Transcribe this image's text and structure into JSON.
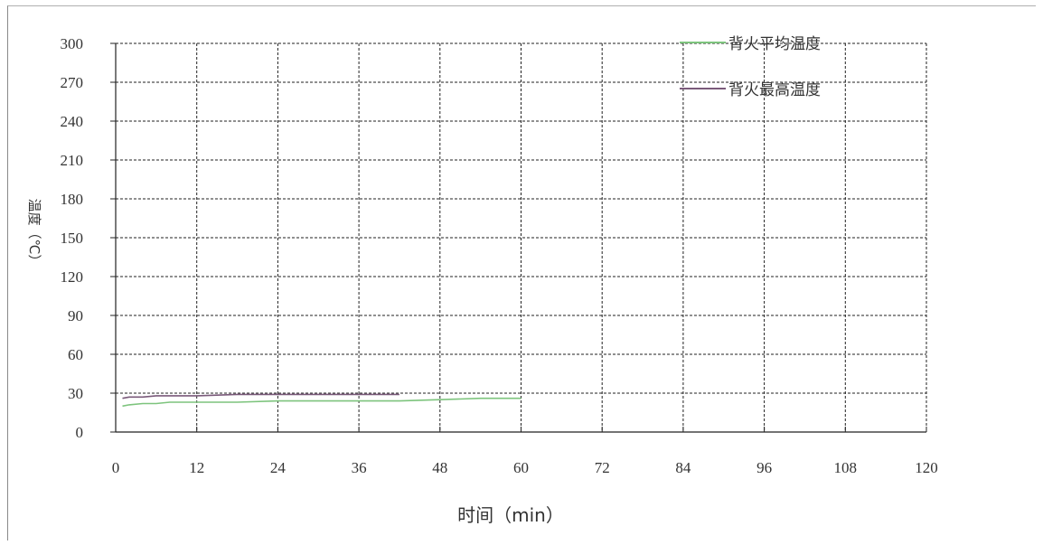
{
  "chart_data": {
    "type": "line",
    "title": "",
    "xlabel": "时间（min）",
    "ylabel": "温度（℃）",
    "xlim": [
      0,
      120
    ],
    "ylim": [
      0,
      300
    ],
    "x_ticks": [
      "0",
      "12",
      "24",
      "36",
      "48",
      "60",
      "72",
      "84",
      "96",
      "108",
      "120"
    ],
    "y_ticks": [
      "0",
      "30",
      "60",
      "90",
      "120",
      "150",
      "180",
      "210",
      "240",
      "270",
      "300"
    ],
    "grid": true,
    "legend_position": "top-right",
    "series": [
      {
        "name": "背火平均温度",
        "color": "#7dc47d",
        "x": [
          1,
          2,
          4,
          6,
          8,
          12,
          18,
          24,
          30,
          36,
          42,
          48,
          54,
          60
        ],
        "y": [
          20,
          21,
          22,
          22,
          23,
          23,
          23,
          24,
          24,
          24,
          24,
          25,
          26,
          26
        ]
      },
      {
        "name": "背火最高温度",
        "color": "#7a5a7a",
        "x": [
          1,
          2,
          4,
          6,
          8,
          12,
          18,
          24,
          30,
          36,
          42
        ],
        "y": [
          26,
          27,
          27,
          28,
          28,
          28,
          29,
          29,
          29,
          29,
          29
        ]
      }
    ]
  }
}
